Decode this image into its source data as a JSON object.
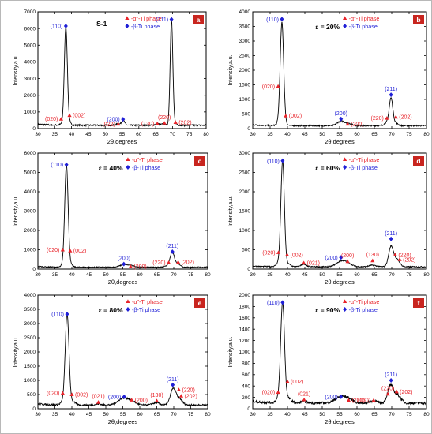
{
  "figure": {
    "colors": {
      "red": "#e8232a",
      "blue": "#1f1fd6",
      "badge": "#c8251f",
      "line": "#000000"
    }
  },
  "chart_data": [
    {
      "id": "a",
      "type": "line",
      "panel_label": "a",
      "sample_label": "S-1",
      "strain_label": "",
      "xlabel": "2θ,degrees",
      "ylabel": "Intensity,a.u.",
      "xlim": [
        30,
        80
      ],
      "ylim": [
        0,
        7000
      ],
      "xticks": [
        30,
        35,
        40,
        45,
        50,
        55,
        60,
        65,
        70,
        75,
        80
      ],
      "yticks": [
        0,
        1000,
        2000,
        3000,
        4000,
        5000,
        6000,
        7000
      ],
      "baseline": 200,
      "peaks": [
        [
          37,
          60,
          0.5
        ],
        [
          38.3,
          5900,
          0.45
        ],
        [
          39.3,
          150,
          0.5
        ],
        [
          53.7,
          80,
          0.5
        ],
        [
          55.3,
          300,
          0.5
        ],
        [
          65.5,
          100,
          0.6
        ],
        [
          67.3,
          80,
          0.5
        ],
        [
          69.7,
          6300,
          0.4
        ],
        [
          70.8,
          120,
          0.5
        ]
      ],
      "legend": [
        "-α\"-Ti phase",
        "-β-Ti phase"
      ],
      "annotations": [
        {
          "text": "(110)",
          "phase": "beta",
          "x": 38.3,
          "y": 6150,
          "side": "left"
        },
        {
          "text": "(211)",
          "phase": "beta",
          "x": 69.7,
          "y": 6550,
          "side": "left"
        },
        {
          "text": "(200)",
          "phase": "beta",
          "x": 55.3,
          "y": 560,
          "side": "left"
        },
        {
          "text": "(020)",
          "phase": "alpha",
          "x": 36.9,
          "y": 580,
          "side": "left"
        },
        {
          "text": "(002)",
          "phase": "alpha",
          "x": 39.4,
          "y": 800,
          "side": "right"
        },
        {
          "text": "(022)",
          "phase": "alpha",
          "x": 53.9,
          "y": 280,
          "side": "left"
        },
        {
          "text": "(130)",
          "phase": "alpha",
          "x": 65.5,
          "y": 300,
          "side": "left"
        },
        {
          "text": "(220)",
          "phase": "alpha",
          "x": 67.6,
          "y": 340,
          "side": "up"
        },
        {
          "text": "(202)",
          "phase": "alpha",
          "x": 70.9,
          "y": 380,
          "side": "right"
        }
      ]
    },
    {
      "id": "b",
      "type": "line",
      "panel_label": "b",
      "sample_label": "",
      "strain_label": "ε = 20%",
      "xlabel": "2θ,degrees",
      "ylabel": "Intensity,a.u.",
      "xlim": [
        30,
        80
      ],
      "ylim": [
        0,
        4000
      ],
      "xticks": [
        30,
        35,
        40,
        45,
        50,
        55,
        60,
        65,
        70,
        75,
        80
      ],
      "yticks": [
        0,
        500,
        1000,
        1500,
        2000,
        2500,
        3000,
        3500,
        4000
      ],
      "baseline": 100,
      "peaks": [
        [
          37.4,
          80,
          0.6
        ],
        [
          38.4,
          3500,
          0.5
        ],
        [
          39.4,
          60,
          0.6
        ],
        [
          55.3,
          150,
          1.0
        ],
        [
          57.5,
          80,
          1.0
        ],
        [
          68.8,
          120,
          0.8
        ],
        [
          69.8,
          880,
          0.5
        ],
        [
          71,
          100,
          0.7
        ]
      ],
      "legend": [
        "-α\"-Ti phase",
        "-β-Ti phase"
      ],
      "annotations": [
        {
          "text": "(110)",
          "phase": "beta",
          "x": 38.4,
          "y": 3750,
          "side": "left"
        },
        {
          "text": "(020)",
          "phase": "alpha",
          "x": 37.3,
          "y": 1450,
          "side": "left"
        },
        {
          "text": "(002)",
          "phase": "alpha",
          "x": 39.5,
          "y": 440,
          "side": "right"
        },
        {
          "text": "(200)",
          "phase": "beta",
          "x": 55.4,
          "y": 330,
          "side": "up"
        },
        {
          "text": "(200)",
          "phase": "alpha",
          "x": 57.3,
          "y": 160,
          "side": "right"
        },
        {
          "text": "(211)",
          "phase": "beta",
          "x": 69.8,
          "y": 1160,
          "side": "up"
        },
        {
          "text": "(220)",
          "phase": "alpha",
          "x": 68.6,
          "y": 360,
          "side": "left"
        },
        {
          "text": "(202)",
          "phase": "alpha",
          "x": 71.2,
          "y": 400,
          "side": "right"
        }
      ]
    },
    {
      "id": "c",
      "type": "line",
      "panel_label": "c",
      "sample_label": "",
      "strain_label": "ε = 40%",
      "xlabel": "2θ,degrees",
      "ylabel": "Intensity,a.u.",
      "xlim": [
        30,
        80
      ],
      "ylim": [
        0,
        6000
      ],
      "xticks": [
        30,
        35,
        40,
        45,
        50,
        55,
        60,
        65,
        70,
        75,
        80
      ],
      "yticks": [
        0,
        1000,
        2000,
        3000,
        4000,
        5000,
        6000
      ],
      "baseline": 100,
      "peaks": [
        [
          37.6,
          120,
          0.6
        ],
        [
          38.4,
          5250,
          0.5
        ],
        [
          39.6,
          120,
          0.6
        ],
        [
          55.3,
          120,
          1.2
        ],
        [
          57.5,
          70,
          1.0
        ],
        [
          68.6,
          120,
          0.8
        ],
        [
          69.6,
          720,
          0.6
        ],
        [
          71.2,
          180,
          0.7
        ]
      ],
      "legend": [
        "-α\"-Ti phase",
        "-β-Ti phase"
      ],
      "annotations": [
        {
          "text": "(110)",
          "phase": "beta",
          "x": 38.4,
          "y": 5400,
          "side": "left"
        },
        {
          "text": "(020)",
          "phase": "alpha",
          "x": 37.3,
          "y": 1000,
          "side": "left"
        },
        {
          "text": "(002)",
          "phase": "alpha",
          "x": 39.5,
          "y": 950,
          "side": "right"
        },
        {
          "text": "(200)",
          "phase": "beta",
          "x": 55.3,
          "y": 260,
          "side": "up"
        },
        {
          "text": "(200)",
          "phase": "alpha",
          "x": 57.3,
          "y": 140,
          "side": "right"
        },
        {
          "text": "(211)",
          "phase": "beta",
          "x": 69.6,
          "y": 900,
          "side": "up"
        },
        {
          "text": "(220)",
          "phase": "alpha",
          "x": 68.5,
          "y": 340,
          "side": "left"
        },
        {
          "text": "(202)",
          "phase": "alpha",
          "x": 71.3,
          "y": 360,
          "side": "right"
        }
      ]
    },
    {
      "id": "d",
      "type": "line",
      "panel_label": "d",
      "sample_label": "",
      "strain_label": "ε = 60%",
      "xlabel": "2θ,degrees",
      "ylabel": "Intensity,a.u.",
      "xlim": [
        30,
        80
      ],
      "ylim": [
        0,
        3000
      ],
      "xticks": [
        30,
        35,
        40,
        45,
        50,
        55,
        60,
        65,
        70,
        75,
        80
      ],
      "yticks": [
        0,
        500,
        1000,
        1500,
        2000,
        2500,
        3000
      ],
      "baseline": 60,
      "peaks": [
        [
          37.5,
          100,
          0.7
        ],
        [
          38.6,
          2700,
          0.5
        ],
        [
          40,
          80,
          0.8
        ],
        [
          44.6,
          60,
          0.8
        ],
        [
          55.5,
          140,
          1.4
        ],
        [
          57.5,
          60,
          1.2
        ],
        [
          64.5,
          40,
          1.0
        ],
        [
          69.8,
          520,
          0.7
        ],
        [
          71.5,
          180,
          0.8
        ]
      ],
      "legend": [
        "-α\"-Ti phase",
        "-β-Ti phase"
      ],
      "annotations": [
        {
          "text": "(110)",
          "phase": "beta",
          "x": 38.6,
          "y": 2800,
          "side": "left"
        },
        {
          "text": "(020)",
          "phase": "alpha",
          "x": 37.4,
          "y": 430,
          "side": "left"
        },
        {
          "text": "(002)",
          "phase": "alpha",
          "x": 39.9,
          "y": 370,
          "side": "right"
        },
        {
          "text": "(021)",
          "phase": "alpha",
          "x": 44.7,
          "y": 160,
          "side": "right"
        },
        {
          "text": "(200)",
          "phase": "beta",
          "x": 55.4,
          "y": 300,
          "side": "left"
        },
        {
          "text": "(200)",
          "phase": "alpha",
          "x": 57.3,
          "y": 200,
          "side": "up"
        },
        {
          "text": "(130)",
          "phase": "alpha",
          "x": 64.5,
          "y": 220,
          "side": "up"
        },
        {
          "text": "(211)",
          "phase": "beta",
          "x": 69.8,
          "y": 780,
          "side": "up"
        },
        {
          "text": "(220)",
          "phase": "alpha",
          "x": 71,
          "y": 370,
          "side": "right"
        },
        {
          "text": "(202)",
          "phase": "alpha",
          "x": 72.3,
          "y": 250,
          "side": "right"
        }
      ]
    },
    {
      "id": "e",
      "type": "line",
      "panel_label": "e",
      "sample_label": "",
      "strain_label": "ε = 80%",
      "xlabel": "2θ,degrees",
      "ylabel": "Intensity,a.u.",
      "xlim": [
        30,
        80
      ],
      "ylim": [
        0,
        4000
      ],
      "xticks": [
        30,
        35,
        40,
        45,
        50,
        55,
        60,
        65,
        70,
        75,
        80
      ],
      "yticks": [
        0,
        500,
        1000,
        1500,
        2000,
        2500,
        3000,
        3500,
        4000
      ],
      "baseline": 130,
      "peaks": [
        [
          37.6,
          120,
          0.8
        ],
        [
          38.6,
          3150,
          0.55
        ],
        [
          40.2,
          120,
          0.8
        ],
        [
          47.8,
          40,
          0.8
        ],
        [
          55.2,
          240,
          1.6
        ],
        [
          57.8,
          100,
          1.2
        ],
        [
          64.8,
          80,
          1.0
        ],
        [
          69.8,
          560,
          0.8
        ],
        [
          71.6,
          220,
          0.9
        ]
      ],
      "legend": [
        "-α\"-Ti phase",
        "-β-Ti phase"
      ],
      "annotations": [
        {
          "text": "(110)",
          "phase": "beta",
          "x": 38.6,
          "y": 3330,
          "side": "left"
        },
        {
          "text": "(020)",
          "phase": "alpha",
          "x": 37.3,
          "y": 550,
          "side": "left"
        },
        {
          "text": "(002)",
          "phase": "alpha",
          "x": 40,
          "y": 500,
          "side": "right"
        },
        {
          "text": "(021)",
          "phase": "alpha",
          "x": 47.8,
          "y": 230,
          "side": "up"
        },
        {
          "text": "(200)",
          "phase": "beta",
          "x": 55.4,
          "y": 420,
          "side": "left"
        },
        {
          "text": "(200)",
          "phase": "alpha",
          "x": 57.6,
          "y": 310,
          "side": "right"
        },
        {
          "text": "(130)",
          "phase": "alpha",
          "x": 65,
          "y": 280,
          "side": "up"
        },
        {
          "text": "(211)",
          "phase": "beta",
          "x": 69.7,
          "y": 840,
          "side": "up"
        },
        {
          "text": "(220)",
          "phase": "alpha",
          "x": 71.5,
          "y": 670,
          "side": "right"
        },
        {
          "text": "(202)",
          "phase": "alpha",
          "x": 72.2,
          "y": 450,
          "side": "right"
        }
      ]
    },
    {
      "id": "f",
      "type": "line",
      "panel_label": "f",
      "sample_label": "",
      "strain_label": "ε = 90%",
      "xlabel": "2θ,degrees",
      "ylabel": "Intensity,a.u.",
      "xlim": [
        30,
        80
      ],
      "ylim": [
        0,
        2000
      ],
      "xticks": [
        30,
        35,
        40,
        45,
        50,
        55,
        60,
        65,
        70,
        75,
        80
      ],
      "yticks": [
        0,
        200,
        400,
        600,
        800,
        1000,
        1200,
        1400,
        1600,
        1800,
        2000
      ],
      "baseline": 100,
      "peaks": [
        [
          37.6,
          80,
          0.8
        ],
        [
          38.6,
          1730,
          0.55
        ],
        [
          40.2,
          80,
          0.9
        ],
        [
          44.8,
          30,
          0.8
        ],
        [
          55.4,
          110,
          1.6
        ],
        [
          57.8,
          50,
          1.2
        ],
        [
          64.8,
          40,
          1.0
        ],
        [
          69.6,
          300,
          0.8
        ],
        [
          71.6,
          140,
          1.0
        ]
      ],
      "legend": [
        "-α\"-Ti phase",
        "-β-Ti phase"
      ],
      "annotations": [
        {
          "text": "(110)",
          "phase": "beta",
          "x": 38.6,
          "y": 1870,
          "side": "left"
        },
        {
          "text": "(020)",
          "phase": "alpha",
          "x": 37.3,
          "y": 290,
          "side": "left"
        },
        {
          "text": "(002)",
          "phase": "alpha",
          "x": 40,
          "y": 480,
          "side": "right"
        },
        {
          "text": "(021)",
          "phase": "alpha",
          "x": 44.8,
          "y": 160,
          "side": "up"
        },
        {
          "text": "(200)",
          "phase": "beta",
          "x": 55.4,
          "y": 210,
          "side": "left"
        },
        {
          "text": "(200)",
          "phase": "alpha",
          "x": 57.6,
          "y": 150,
          "side": "right"
        },
        {
          "text": "(130)",
          "phase": "alpha",
          "x": 64.8,
          "y": 150,
          "side": "left"
        },
        {
          "text": "(211)",
          "phase": "beta",
          "x": 69.8,
          "y": 500,
          "side": "up"
        },
        {
          "text": "(220)",
          "phase": "alpha",
          "x": 68.9,
          "y": 260,
          "side": "up"
        },
        {
          "text": "(202)",
          "phase": "alpha",
          "x": 71.4,
          "y": 300,
          "side": "right"
        }
      ]
    }
  ]
}
